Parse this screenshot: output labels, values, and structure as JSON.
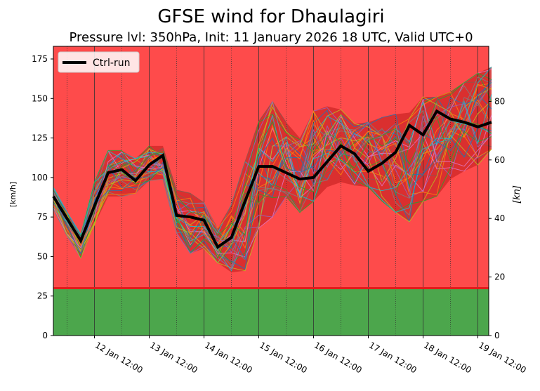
{
  "chart_data": {
    "type": "line",
    "title": "GFSE wind for Dhaulagiri",
    "subtitle": "Pressure lvl: 350hPa, Init: 11 January 2026 18 UTC, Valid UTC+0",
    "ylabel_left": "[km/h]",
    "ylabel_right": "[kn]",
    "ylim": [
      0,
      183
    ],
    "yticks_left": [
      0,
      25,
      50,
      75,
      100,
      125,
      150,
      175
    ],
    "yticks_right": [
      0,
      20,
      40,
      60,
      80
    ],
    "xtick_labels": [
      "12 Jan 12:00",
      "13 Jan 12:00",
      "14 Jan 12:00",
      "15 Jan 12:00",
      "16 Jan 12:00",
      "17 Jan 12:00",
      "18 Jan 12:00",
      "19 Jan 12:00"
    ],
    "x_start": "11 Jan 18:00",
    "x_step_hours": 6,
    "legend": {
      "label": "Ctrl-run",
      "placement": "top-left"
    },
    "threshold_kmh": 30,
    "band_colors": {
      "below": "#4ca64c",
      "above": "#fe4b4b",
      "threshold_line": "#e31a1a",
      "envelope": "#d42a2a"
    },
    "series": [
      {
        "name": "Ctrl-run",
        "color": "#000000",
        "values": [
          88,
          74,
          60,
          82,
          103,
          105,
          98,
          108,
          114,
          76,
          75,
          73,
          56,
          62,
          85,
          107,
          107,
          103,
          99,
          100,
          110,
          120,
          115,
          104,
          109,
          116,
          133,
          127,
          142,
          137,
          135,
          132,
          135
        ]
      }
    ],
    "ensemble_max": [
      94,
      78,
      64,
      97,
      117,
      117,
      112,
      120,
      120,
      92,
      90,
      84,
      68,
      83,
      110,
      136,
      148,
      135,
      125,
      142,
      145,
      143,
      134,
      135,
      138,
      140,
      141,
      151,
      151,
      154,
      160,
      166,
      170
    ],
    "ensemble_min": [
      80,
      63,
      49,
      70,
      88,
      88,
      90,
      98,
      99,
      65,
      52,
      55,
      46,
      40,
      41,
      68,
      75,
      88,
      78,
      85,
      94,
      97,
      95,
      94,
      85,
      78,
      72,
      85,
      88,
      99,
      104,
      108,
      118
    ],
    "ensemble_member_count": 30
  }
}
